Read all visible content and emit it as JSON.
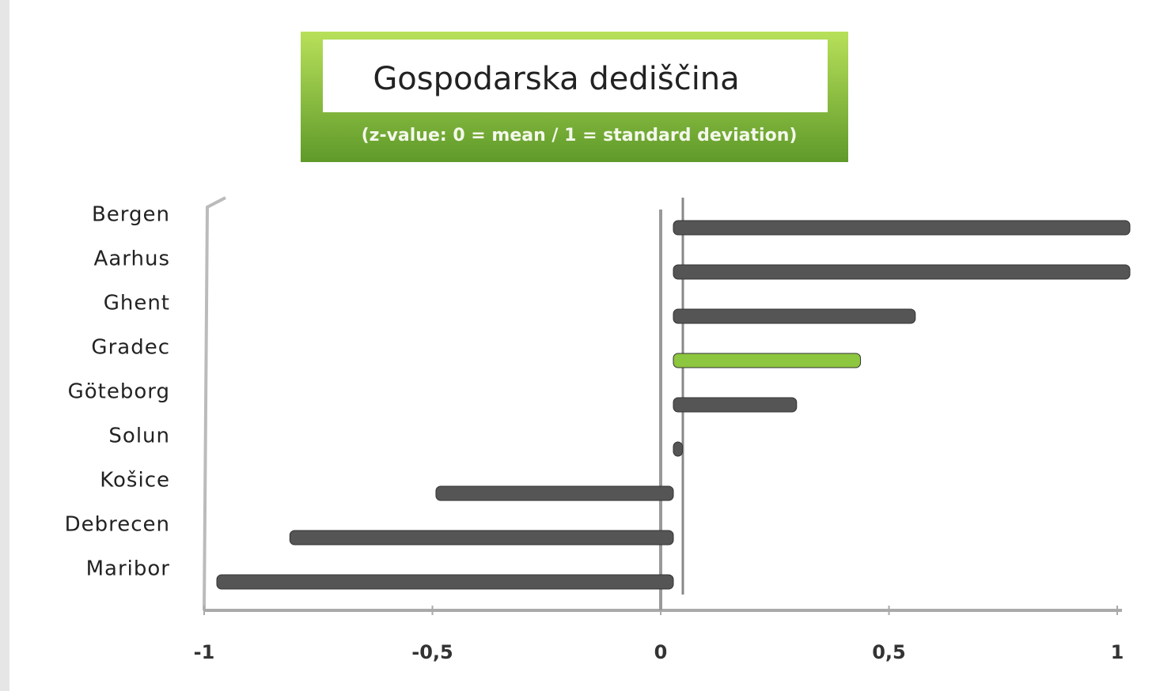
{
  "chart_data": {
    "type": "bar",
    "orientation": "horizontal",
    "title": "Gospodarska dediščina",
    "subtitle": "(z-value: 0 = mean / 1 = standard deviation)",
    "categories": [
      "Bergen",
      "Aarhus",
      "Ghent",
      "Gradec",
      "Göteborg",
      "Solun",
      "Košice",
      "Debrecen",
      "Maribor"
    ],
    "values": [
      1.0,
      1.0,
      0.53,
      0.41,
      0.27,
      0.02,
      -0.52,
      -0.84,
      -1.0
    ],
    "colors": [
      "#555555",
      "#555555",
      "#555555",
      "#8dc63f",
      "#555555",
      "#555555",
      "#555555",
      "#555555",
      "#555555"
    ],
    "xlim": [
      -1,
      1
    ],
    "xticks": [
      -1,
      {
        "value": -0.5,
        "label": "-0,5"
      },
      0,
      {
        "value": 0.5,
        "label": "0,5"
      },
      1
    ]
  }
}
